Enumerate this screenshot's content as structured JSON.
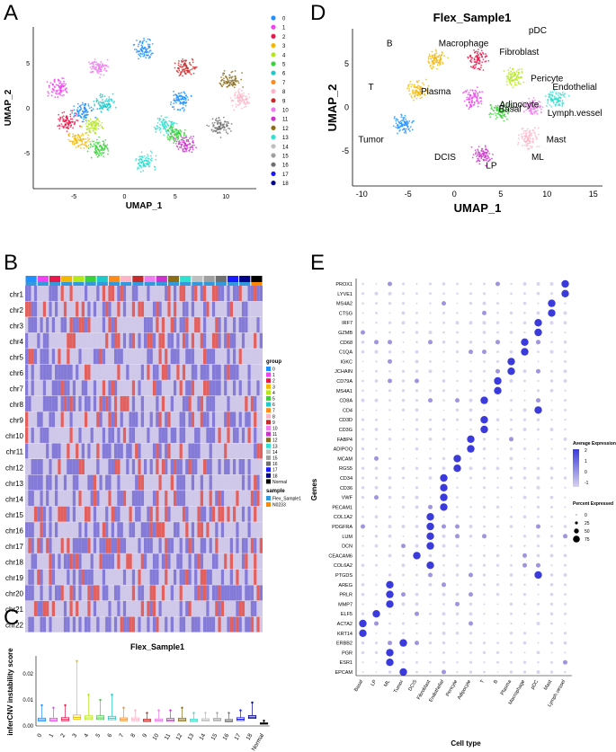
{
  "panels": {
    "A": "A",
    "B": "B",
    "C": "C",
    "D": "D",
    "E": "E"
  },
  "colors": {
    "clusters": [
      "#1e90ff",
      "#f042f0",
      "#e8184a",
      "#f5b800",
      "#b4e81a",
      "#3bd13b",
      "#1fc9c9",
      "#ff8c1a",
      "#ffb3c6",
      "#c72a2a",
      "#f07cf0",
      "#cc33cc",
      "#8c6d1a",
      "#30e0d0",
      "#c0c0c0",
      "#a0a0a0",
      "#707070",
      "#1a1aff",
      "#00008b"
    ],
    "normal": "#000000",
    "flex": "#3399dd",
    "n0233": "#ff8800",
    "expr_high": "#3b3bdc",
    "expr_low": "#d8d3ee"
  },
  "chart_data": [
    {
      "id": "A",
      "type": "scatter",
      "xlabel": "UMAP_1",
      "ylabel": "UMAP_2",
      "xticks": [
        "-5",
        "0",
        "5",
        "10"
      ],
      "yticks": [
        "5",
        "0",
        "-5"
      ],
      "xlim": [
        -9,
        13
      ],
      "ylim": [
        -9,
        9
      ],
      "legend": [
        "0",
        "1",
        "2",
        "3",
        "4",
        "5",
        "6",
        "7",
        "8",
        "9",
        "10",
        "11",
        "12",
        "13",
        "14",
        "15",
        "16",
        "17",
        "18"
      ],
      "clusters": [
        {
          "x": -5.5,
          "y": -1.5,
          "c": 2
        },
        {
          "x": -6.5,
          "y": 2.2,
          "c": 1
        },
        {
          "x": -4.5,
          "y": -3.5,
          "c": 3
        },
        {
          "x": -3.0,
          "y": -2.0,
          "c": 4
        },
        {
          "x": -2.5,
          "y": -4.5,
          "c": 5
        },
        {
          "x": -4.0,
          "y": -0.5,
          "c": 0
        },
        {
          "x": -2.0,
          "y": 0.5,
          "c": 6
        },
        {
          "x": -2.5,
          "y": 4.5,
          "c": 10
        },
        {
          "x": 2.0,
          "y": 6.5,
          "c": 0
        },
        {
          "x": 6.0,
          "y": 4.5,
          "c": 9
        },
        {
          "x": 2.0,
          "y": -6.0,
          "c": 13
        },
        {
          "x": 4.0,
          "y": -2.0,
          "c": 13
        },
        {
          "x": 5.5,
          "y": 0.8,
          "c": 0
        },
        {
          "x": 6.0,
          "y": -4.0,
          "c": 11
        },
        {
          "x": 5.0,
          "y": -3.0,
          "c": 5
        },
        {
          "x": 11.5,
          "y": 1.0,
          "c": 8
        },
        {
          "x": 10.5,
          "y": 3.0,
          "c": 12
        },
        {
          "x": 9.5,
          "y": -2.0,
          "c": 16
        }
      ]
    },
    {
      "id": "B",
      "type": "heatmap",
      "rows": [
        "chr1",
        "chr2",
        "chr3",
        "chr4",
        "chr5",
        "chr6",
        "chr7",
        "chr8",
        "chr9",
        "chr10",
        "chr11",
        "chr12",
        "chr13",
        "chr14",
        "chr15",
        "chr16",
        "chr17",
        "chr18",
        "chr19",
        "chr20",
        "chr21",
        "chr22"
      ],
      "legend_group_title": "group",
      "legend_groups": [
        "0",
        "1",
        "2",
        "3",
        "4",
        "5",
        "6",
        "7",
        "8",
        "9",
        "10",
        "11",
        "12",
        "13",
        "14",
        "15",
        "16",
        "17",
        "18",
        "Normal"
      ],
      "legend_sample_title": "sample",
      "legend_samples": [
        "Flex_Sample1",
        "N0233"
      ]
    },
    {
      "id": "C",
      "type": "box",
      "title": "Flex_Sample1",
      "ylabel": "inferCNV instability score",
      "categories": [
        "0",
        "1",
        "2",
        "3",
        "4",
        "5",
        "6",
        "7",
        "8",
        "9",
        "10",
        "11",
        "12",
        "13",
        "14",
        "15",
        "16",
        "17",
        "18",
        "Normal"
      ],
      "medians": [
        0.0024,
        0.0024,
        0.0025,
        0.0033,
        0.0031,
        0.0031,
        0.003,
        0.0025,
        0.0025,
        0.0021,
        0.0022,
        0.0023,
        0.0024,
        0.0021,
        0.0023,
        0.0024,
        0.002,
        0.0026,
        0.0034,
        0.0009
      ],
      "q1": [
        0.0019,
        0.0019,
        0.002,
        0.0026,
        0.0025,
        0.0025,
        0.0024,
        0.002,
        0.002,
        0.0017,
        0.0018,
        0.0018,
        0.0019,
        0.0017,
        0.0019,
        0.002,
        0.0016,
        0.0021,
        0.0029,
        0.0007
      ],
      "q3": [
        0.003,
        0.003,
        0.0032,
        0.0042,
        0.0039,
        0.0039,
        0.0037,
        0.0031,
        0.0031,
        0.0026,
        0.0027,
        0.0029,
        0.003,
        0.0026,
        0.0028,
        0.0029,
        0.0025,
        0.0032,
        0.004,
        0.0012
      ],
      "max": [
        0.008,
        0.007,
        0.008,
        0.025,
        0.012,
        0.01,
        0.012,
        0.007,
        0.006,
        0.005,
        0.006,
        0.006,
        0.007,
        0.005,
        0.005,
        0.005,
        0.005,
        0.006,
        0.009,
        0.002
      ],
      "yticks": [
        "0.00",
        "0.01",
        "0.02"
      ],
      "ylim": [
        0,
        0.027
      ]
    },
    {
      "id": "D",
      "type": "scatter",
      "title": "Flex_Sample1",
      "xlabel": "UMAP_1",
      "ylabel": "UMAP_2",
      "xticks": [
        "-10",
        "-5",
        "0",
        "5",
        "10",
        "15"
      ],
      "yticks": [
        "5",
        "0",
        "-5"
      ],
      "xlim": [
        -11,
        16
      ],
      "ylim": [
        -9,
        9
      ],
      "cell_types": [
        "B",
        "T",
        "Macrophage",
        "Plasma",
        "pDC",
        "Fibroblast",
        "Pericyte",
        "Endothelial",
        "Adipocyte",
        "Basal",
        "Lymph.vessel",
        "Mast",
        "Tumor",
        "DCIS",
        "LP",
        "ML"
      ],
      "clusters": [
        {
          "x": -5.5,
          "y": -2.0,
          "c": 0
        },
        {
          "x": 2.0,
          "y": 1.0,
          "c": 1
        },
        {
          "x": -4.0,
          "y": 2.0,
          "c": 3
        },
        {
          "x": -2.0,
          "y": 5.5,
          "c": 3
        },
        {
          "x": 2.5,
          "y": 5.5,
          "c": 2
        },
        {
          "x": 6.5,
          "y": 3.5,
          "c": 4
        },
        {
          "x": 5.0,
          "y": -0.5,
          "c": 5
        },
        {
          "x": 3.0,
          "y": -5.5,
          "c": 11
        },
        {
          "x": 8.0,
          "y": -3.5,
          "c": 8
        },
        {
          "x": 11.0,
          "y": 1.0,
          "c": 13
        },
        {
          "x": 8.5,
          "y": 0.0,
          "c": 10
        }
      ]
    },
    {
      "id": "E",
      "type": "dotplot",
      "xlabel": "Cell type",
      "ylabel": "Genes",
      "cell_types": [
        "Basal",
        "LP",
        "ML",
        "Tumor",
        "DCIS",
        "Fibroblast",
        "Endothelial",
        "Pericyte",
        "Adipocyte",
        "T",
        "B",
        "Plasma",
        "Macrophage",
        "pDC",
        "Mast",
        "Lymph.vessel"
      ],
      "genes": [
        "PROX1",
        "LYVE1",
        "MS4A2",
        "CTSG",
        "IRF7",
        "GZMB",
        "CD68",
        "C1QA",
        "IGKC",
        "JCHAIN",
        "CD79A",
        "MS4A1",
        "CD8A",
        "CD4",
        "CD3D",
        "CD3G",
        "FABP4",
        "ADIPOQ",
        "MCAM",
        "RGS5",
        "CD34",
        "CD36",
        "VWF",
        "PECAM1",
        "COL1A2",
        "PDGFRA",
        "LUM",
        "DCN",
        "CEACAM6",
        "COL6A2",
        "PTGDS",
        "AREG",
        "PRLR",
        "MMP7",
        "ELF5",
        "ACTA2",
        "KRT14",
        "ERBB2",
        "PGR",
        "ESR1",
        "EPCAM"
      ],
      "markers": [
        [
          0,
          15
        ],
        [
          1,
          15
        ],
        [
          2,
          14
        ],
        [
          3,
          14
        ],
        [
          4,
          13
        ],
        [
          5,
          13
        ],
        [
          6,
          12
        ],
        [
          7,
          12
        ],
        [
          8,
          11
        ],
        [
          9,
          11
        ],
        [
          10,
          10
        ],
        [
          11,
          10
        ],
        [
          12,
          9
        ],
        [
          13,
          13
        ],
        [
          14,
          9
        ],
        [
          15,
          9
        ],
        [
          16,
          8
        ],
        [
          17,
          8
        ],
        [
          18,
          7
        ],
        [
          19,
          7
        ],
        [
          20,
          6
        ],
        [
          21,
          6
        ],
        [
          22,
          6
        ],
        [
          23,
          6
        ],
        [
          24,
          5
        ],
        [
          25,
          5
        ],
        [
          26,
          5
        ],
        [
          27,
          5
        ],
        [
          28,
          4
        ],
        [
          29,
          5
        ],
        [
          30,
          13
        ],
        [
          31,
          2
        ],
        [
          32,
          2
        ],
        [
          33,
          2
        ],
        [
          34,
          1
        ],
        [
          35,
          0
        ],
        [
          36,
          0
        ],
        [
          37,
          3
        ],
        [
          38,
          2
        ],
        [
          39,
          2
        ],
        [
          40,
          3
        ]
      ],
      "legend_expr_title": "Average Expression",
      "legend_expr_ticks": [
        "2",
        "1",
        "0",
        "-1"
      ],
      "legend_pct_title": "Percent Expressed",
      "legend_pct_ticks": [
        "0",
        "25",
        "50",
        "75"
      ]
    }
  ]
}
